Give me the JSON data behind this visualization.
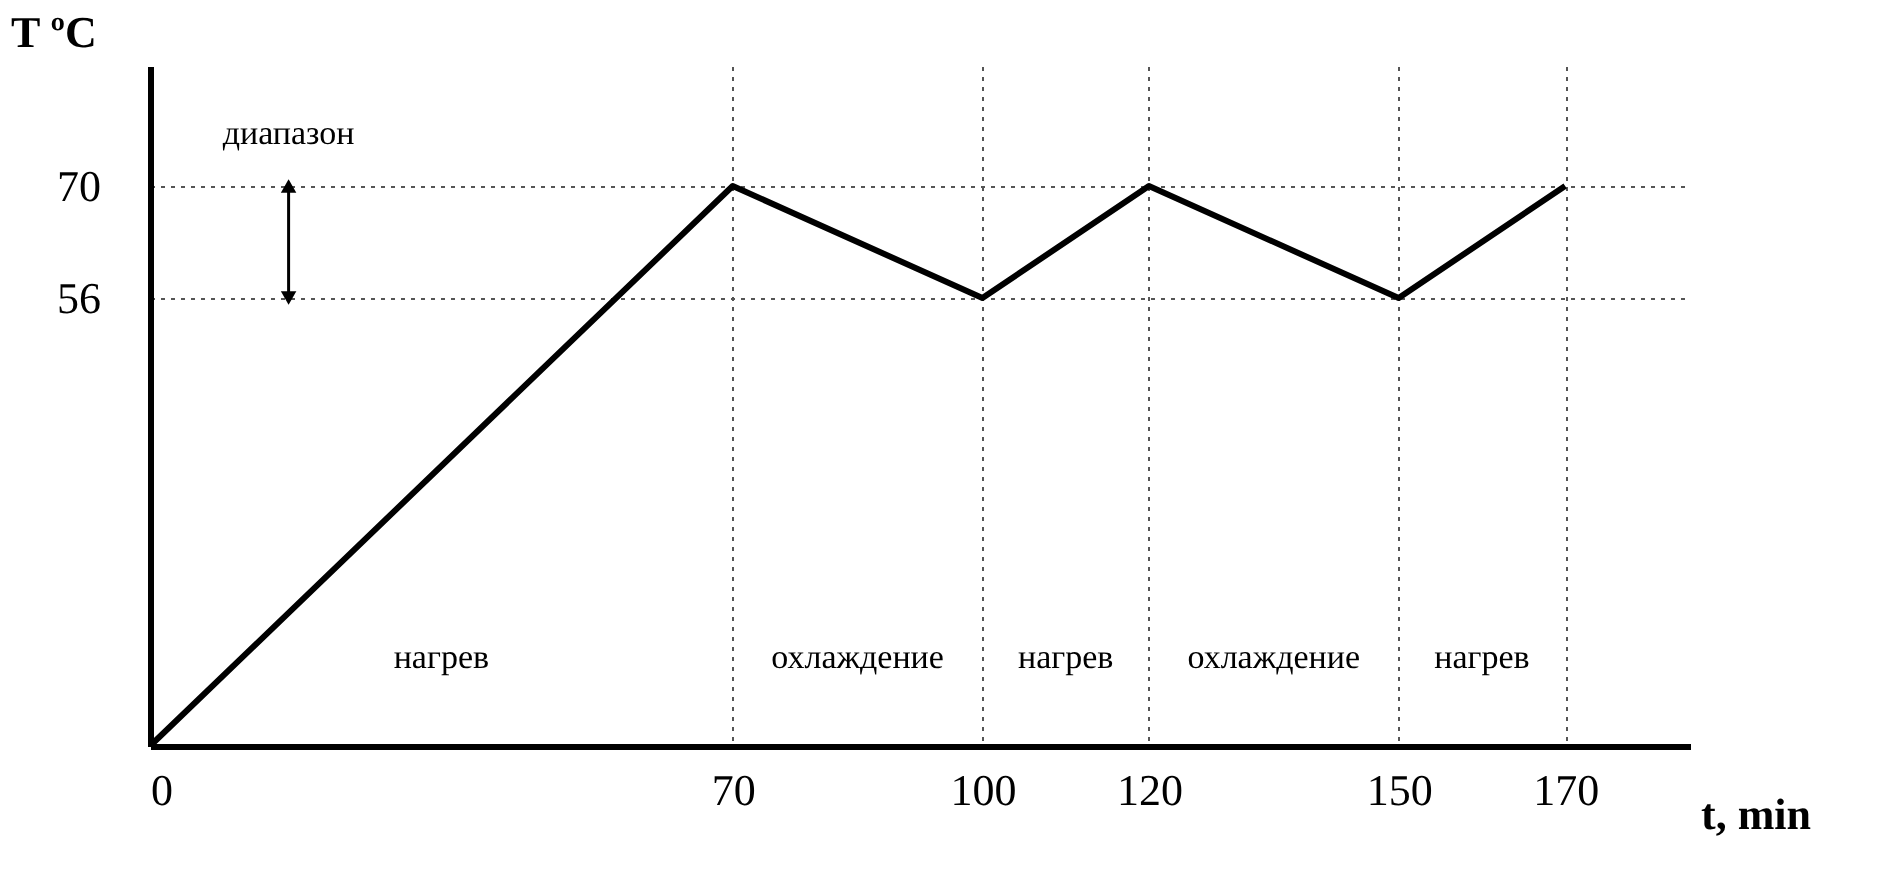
{
  "chart_data": {
    "type": "line",
    "xlabel": "t, min",
    "ylabel": "T ºC",
    "x": [
      0,
      70,
      100,
      120,
      150,
      170
    ],
    "series": [
      {
        "color": "#000000",
        "values": [
          0,
          70,
          56,
          70,
          56,
          70
        ]
      }
    ],
    "xlim": [
      0,
      185
    ],
    "xticks": [
      0,
      70,
      100,
      120,
      150,
      170
    ],
    "ylim": [
      0,
      85
    ],
    "yticks": [
      56,
      70
    ],
    "grid": true,
    "line_style": "solid",
    "marker": "none",
    "annotations": [
      "диапазон",
      "нагрев",
      "охлаждение",
      "нагрев",
      "охлаждение",
      "нагрев"
    ]
  }
}
